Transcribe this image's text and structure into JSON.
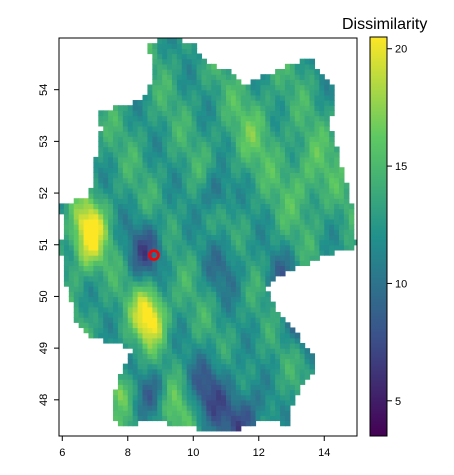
{
  "map": {
    "legend_title": "Dissimilarity",
    "x_ticks": [
      "6",
      "8",
      "10",
      "12",
      "14"
    ],
    "y_ticks": [
      "48",
      "49",
      "50",
      "51",
      "52",
      "53",
      "54"
    ],
    "x_tick_values": [
      6,
      8,
      10,
      12,
      14
    ],
    "y_tick_values": [
      48,
      49,
      50,
      51,
      52,
      53,
      54
    ],
    "xlim": [
      5.9,
      15.0
    ],
    "ylim": [
      47.3,
      55.0
    ],
    "marker": {
      "lon": 8.8,
      "lat": 50.8,
      "color": "#ff0000"
    },
    "colorbar": {
      "ticks": [
        "5",
        "10",
        "15",
        "20"
      ],
      "tick_values": [
        5,
        10,
        15,
        20
      ],
      "range": [
        3.5,
        20.5
      ],
      "colors": [
        "#440154",
        "#3b528b",
        "#21918c",
        "#5ec962",
        "#fde725"
      ]
    }
  }
}
